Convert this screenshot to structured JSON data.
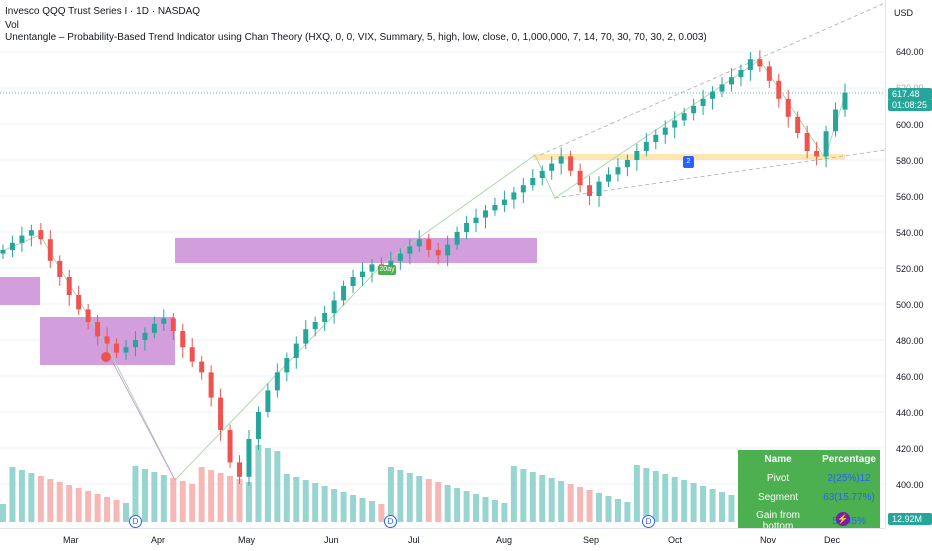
{
  "header": {
    "title": "Invesco QQQ Trust Series I · 1D · NASDAQ",
    "volume_label": "Vol",
    "indicator": "Unentangle – Probability-Based Trend Indicator using Chan Theory (HXQ, 0, 0, VIX, Summary, 5, high, low, close, 0, 1,000,000, 7, 14, 70, 30, 70, 30, 2, 0.003)"
  },
  "price_axis": {
    "currency": "USD",
    "ticks": [
      "640.00",
      "620.00",
      "600.00",
      "580.00",
      "560.00",
      "540.00",
      "520.00",
      "500.00",
      "480.00",
      "460.00",
      "440.00",
      "420.00",
      "400.00"
    ],
    "current_price": "617.48",
    "countdown": "01:08:25",
    "volume_tag": "12.92M"
  },
  "time_axis": {
    "labels": [
      "Mar",
      "Apr",
      "May",
      "Jun",
      "Jul",
      "Aug",
      "Sep",
      "Oct",
      "Nov",
      "Dec"
    ]
  },
  "markers": {
    "dividend": "D",
    "earnings": "⚡",
    "label_2": "2",
    "label_20": "20ay"
  },
  "summary_table": {
    "headers": [
      "Name",
      "Percentage"
    ],
    "rows": [
      {
        "name": "Pivot",
        "value": "2(25%)12"
      },
      {
        "name": "Segment",
        "value": "63(15.77%)"
      },
      {
        "name": "Gain from bottom",
        "value": "53.45%"
      }
    ]
  },
  "colors": {
    "up": "#26a69a",
    "down": "#ef5350",
    "zone": "#ce93d8",
    "accent": "#2962ff",
    "table_bg": "#4caf50"
  },
  "chart_data": {
    "type": "candlestick",
    "y_range": [
      395,
      650
    ],
    "price_series_close": [
      530,
      534,
      538,
      541,
      536,
      524,
      515,
      505,
      497,
      490,
      482,
      478,
      473,
      476,
      480,
      484,
      489,
      492,
      485,
      476,
      468,
      462,
      448,
      430,
      412,
      404,
      425,
      440,
      452,
      462,
      470,
      478,
      486,
      490,
      495,
      502,
      510,
      515,
      518,
      522,
      521,
      524,
      528,
      532,
      536,
      530,
      527,
      533,
      540,
      545,
      548,
      552,
      555,
      558,
      562,
      566,
      570,
      574,
      578,
      582,
      574,
      566,
      560,
      568,
      572,
      576,
      580,
      585,
      590,
      594,
      598,
      602,
      606,
      610,
      614,
      618,
      622,
      626,
      630,
      636,
      632,
      624,
      614,
      604,
      595,
      585,
      582,
      596,
      608,
      617.48
    ]
  }
}
